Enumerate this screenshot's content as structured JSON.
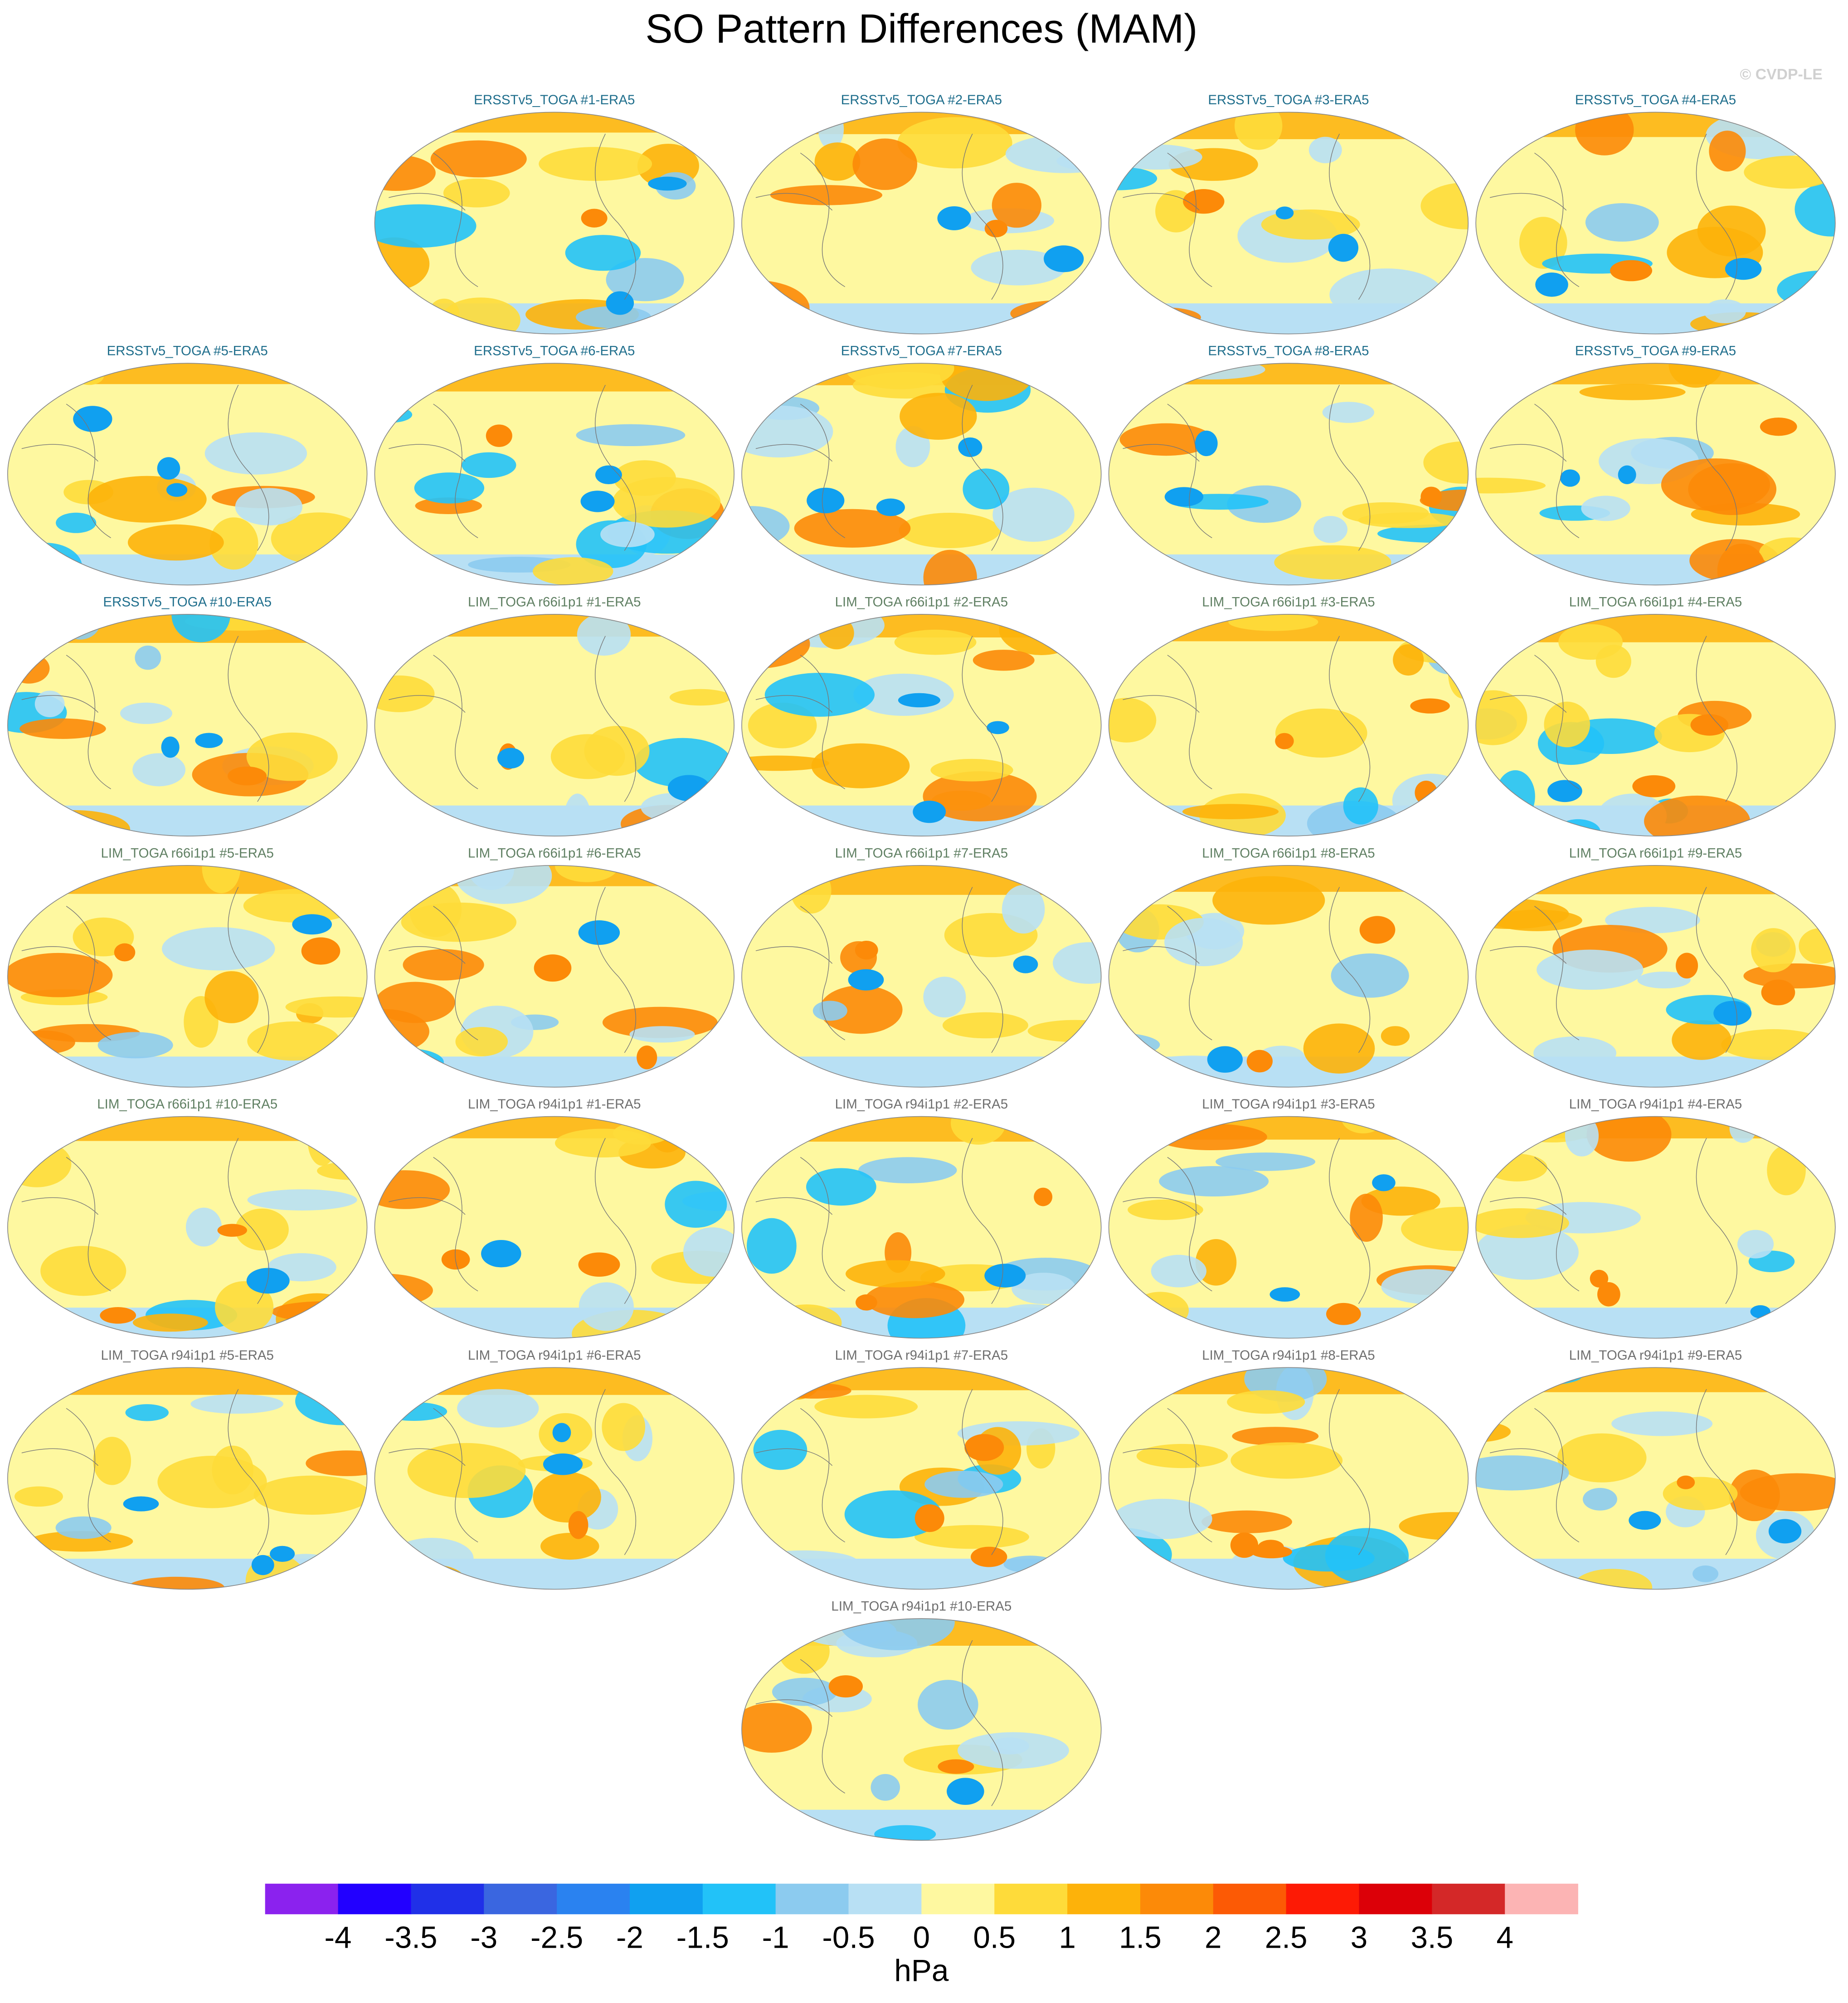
{
  "title": "SO Pattern Differences (MAM)",
  "copyright": "© CVDP-LE",
  "panels": [
    {
      "title": "ERSSTv5_TOGA #1-ERA5",
      "color": "#1f6e8c"
    },
    {
      "title": "ERSSTv5_TOGA #2-ERA5",
      "color": "#1f6e8c"
    },
    {
      "title": "ERSSTv5_TOGA #3-ERA5",
      "color": "#1f6e8c"
    },
    {
      "title": "ERSSTv5_TOGA #4-ERA5",
      "color": "#1f6e8c"
    },
    {
      "title": "ERSSTv5_TOGA #5-ERA5",
      "color": "#1f6e8c"
    },
    {
      "title": "ERSSTv5_TOGA #6-ERA5",
      "color": "#1f6e8c"
    },
    {
      "title": "ERSSTv5_TOGA #7-ERA5",
      "color": "#1f6e8c"
    },
    {
      "title": "ERSSTv5_TOGA #8-ERA5",
      "color": "#1f6e8c"
    },
    {
      "title": "ERSSTv5_TOGA #9-ERA5",
      "color": "#1f6e8c"
    },
    {
      "title": "ERSSTv5_TOGA #10-ERA5",
      "color": "#1f6e8c"
    },
    {
      "title": "LIM_TOGA r66i1p1 #1-ERA5",
      "color": "#5f7f62"
    },
    {
      "title": "LIM_TOGA r66i1p1 #2-ERA5",
      "color": "#5f7f62"
    },
    {
      "title": "LIM_TOGA r66i1p1 #3-ERA5",
      "color": "#5f7f62"
    },
    {
      "title": "LIM_TOGA r66i1p1 #4-ERA5",
      "color": "#5f7f62"
    },
    {
      "title": "LIM_TOGA r66i1p1 #5-ERA5",
      "color": "#5f7f62"
    },
    {
      "title": "LIM_TOGA r66i1p1 #6-ERA5",
      "color": "#5f7f62"
    },
    {
      "title": "LIM_TOGA r66i1p1 #7-ERA5",
      "color": "#5f7f62"
    },
    {
      "title": "LIM_TOGA r66i1p1 #8-ERA5",
      "color": "#5f7f62"
    },
    {
      "title": "LIM_TOGA r66i1p1 #9-ERA5",
      "color": "#5f7f62"
    },
    {
      "title": "LIM_TOGA r66i1p1 #10-ERA5",
      "color": "#5f7f62"
    },
    {
      "title": "LIM_TOGA r94i1p1 #1-ERA5",
      "color": "#6e6e6e"
    },
    {
      "title": "LIM_TOGA r94i1p1 #2-ERA5",
      "color": "#6e6e6e"
    },
    {
      "title": "LIM_TOGA r94i1p1 #3-ERA5",
      "color": "#6e6e6e"
    },
    {
      "title": "LIM_TOGA r94i1p1 #4-ERA5",
      "color": "#6e6e6e"
    },
    {
      "title": "LIM_TOGA r94i1p1 #5-ERA5",
      "color": "#6e6e6e"
    },
    {
      "title": "LIM_TOGA r94i1p1 #6-ERA5",
      "color": "#6e6e6e"
    },
    {
      "title": "LIM_TOGA r94i1p1 #7-ERA5",
      "color": "#6e6e6e"
    },
    {
      "title": "LIM_TOGA r94i1p1 #8-ERA5",
      "color": "#6e6e6e"
    },
    {
      "title": "LIM_TOGA r94i1p1 #9-ERA5",
      "color": "#6e6e6e"
    },
    {
      "title": "LIM_TOGA r94i1p1 #10-ERA5",
      "color": "#6e6e6e"
    }
  ],
  "colorbar": {
    "levels": [
      -4,
      -3.5,
      -3,
      -2.5,
      -2,
      -1.5,
      -1,
      -0.5,
      0,
      0.5,
      1,
      1.5,
      2,
      2.5,
      3,
      3.5,
      4
    ],
    "colors": [
      "#8b22ee",
      "#2200ff",
      "#2030e8",
      "#3a66e0",
      "#2a82f0",
      "#10a0f0",
      "#22c2f8",
      "#8ccbef",
      "#b8e0f4",
      "#fef8a0",
      "#fedb3a",
      "#fdb20a",
      "#fc8a08",
      "#fc5a05",
      "#fd1a05",
      "#dc0008",
      "#d42828",
      "#fcb4b4"
    ],
    "unit": "hPa"
  }
}
